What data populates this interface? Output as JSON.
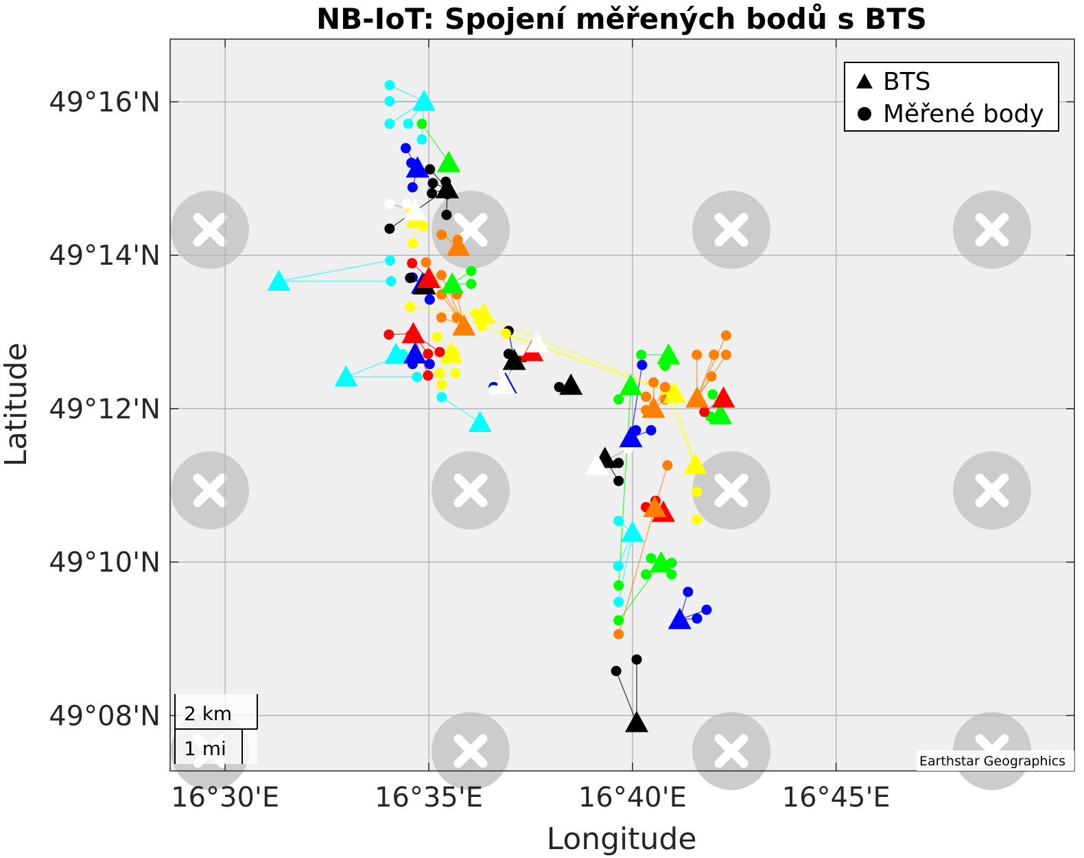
{
  "chart_data": {
    "type": "scatter",
    "title": "NB-IoT: Spojení měřených bodů s BTS",
    "xlabel": "Longitude",
    "ylabel": "Latitude",
    "xlim": [
      16.4775,
      16.8475
    ],
    "ylim": [
      49.1213,
      49.2803
    ],
    "x_ticks": [
      {
        "value": 16.5,
        "label": "16°30'E"
      },
      {
        "value": 16.58333,
        "label": "16°35'E"
      },
      {
        "value": 16.66667,
        "label": "16°40'E"
      },
      {
        "value": 16.75,
        "label": "16°45'E"
      }
    ],
    "y_ticks": [
      {
        "value": 49.13333,
        "label": "49°08'N"
      },
      {
        "value": 49.16667,
        "label": "49°10'N"
      },
      {
        "value": 49.2,
        "label": "49°12'N"
      },
      {
        "value": 49.23333,
        "label": "49°14'N"
      },
      {
        "value": 49.26667,
        "label": "49°16'N"
      }
    ],
    "grid": true,
    "legend": {
      "position": "top-right",
      "entries": [
        {
          "label": "BTS",
          "marker": "triangle",
          "color": "#000000"
        },
        {
          "label": "Měřené body",
          "marker": "circle",
          "color": "#000000"
        }
      ]
    },
    "scale_bar": {
      "km_label": "2 km",
      "mi_label": "1 mi"
    },
    "basemap_attribution": "Earthstar Geographics",
    "series": [
      {
        "color": "#00ffff",
        "bts": [
          [
            16.5814,
            49.2668
          ],
          [
            16.522,
            49.2277
          ],
          [
            16.5495,
            49.2069
          ],
          [
            16.5699,
            49.2118
          ],
          [
            16.6043,
            49.197
          ],
          [
            16.6667,
            49.1731
          ]
        ],
        "points": [
          [
            16.5673,
            49.2703,
            0
          ],
          [
            16.5673,
            49.2668,
            0
          ],
          [
            16.5673,
            49.2619,
            0
          ],
          [
            16.5749,
            49.2619,
            0
          ],
          [
            16.5805,
            49.2585,
            0
          ],
          [
            16.5675,
            49.2322,
            1
          ],
          [
            16.5679,
            49.2277,
            1
          ],
          [
            16.5727,
            49.2118,
            2
          ],
          [
            16.5785,
            49.2069,
            2
          ],
          [
            16.5886,
            49.2025,
            4
          ],
          [
            16.661,
            49.1756,
            5
          ],
          [
            16.6609,
            49.1658,
            5
          ],
          [
            16.661,
            49.158,
            5
          ]
        ]
      },
      {
        "color": "#00ff00",
        "bts": [
          [
            16.5915,
            49.2535
          ],
          [
            16.5929,
            49.2271
          ],
          [
            16.666,
            49.205
          ],
          [
            16.6814,
            49.2117
          ],
          [
            16.7027,
            49.1987
          ],
          [
            16.6784,
            49.1665
          ]
        ],
        "points": [
          [
            16.5805,
            49.2619,
            0
          ],
          [
            16.6007,
            49.2299,
            1
          ],
          [
            16.6007,
            49.2271,
            1
          ],
          [
            16.661,
            49.202,
            2
          ],
          [
            16.6703,
            49.2117,
            3
          ],
          [
            16.68,
            49.2093,
            3
          ],
          [
            16.6985,
            49.1983,
            4
          ],
          [
            16.6995,
            49.2031,
            4
          ],
          [
            16.6743,
            49.1675,
            5
          ],
          [
            16.6827,
            49.1665,
            5
          ],
          [
            16.6722,
            49.164,
            5
          ],
          [
            16.6827,
            49.164,
            5
          ],
          [
            16.661,
            49.1616,
            2
          ],
          [
            16.661,
            49.154,
            5
          ]
        ]
      },
      {
        "color": "#0000ff",
        "bts": [
          [
            16.5787,
            49.2523
          ],
          [
            16.5808,
            49.2271
          ],
          [
            16.5777,
            49.2119
          ],
          [
            16.6147,
            49.2054
          ],
          [
            16.666,
            49.1937
          ],
          [
            16.686,
            49.1542
          ]
        ],
        "points": [
          [
            16.5739,
            49.2566,
            0
          ],
          [
            16.5762,
            49.2534,
            0
          ],
          [
            16.5767,
            49.2481,
            0
          ],
          [
            16.5767,
            49.2285,
            1
          ],
          [
            16.5837,
            49.2237,
            1
          ],
          [
            16.5767,
            49.2097,
            2
          ],
          [
            16.5837,
            49.2097,
            2
          ],
          [
            16.6099,
            49.2047,
            3
          ],
          [
            16.6706,
            49.2095,
            4
          ],
          [
            16.6681,
            49.1953,
            4
          ],
          [
            16.6743,
            49.1953,
            4
          ],
          [
            16.6894,
            49.1602,
            5
          ],
          [
            16.697,
            49.1563,
            5
          ],
          [
            16.6931,
            49.1544,
            5
          ]
        ]
      },
      {
        "color": "#000000",
        "bts": [
          [
            16.5909,
            49.2478
          ],
          [
            16.5815,
            49.2269
          ],
          [
            16.6183,
            49.2105
          ],
          [
            16.6415,
            49.2051
          ],
          [
            16.6554,
            49.1892
          ],
          [
            16.6684,
            49.1318
          ]
        ],
        "points": [
          [
            16.5838,
            49.252,
            0
          ],
          [
            16.5903,
            49.2493,
            0
          ],
          [
            16.585,
            49.249,
            0
          ],
          [
            16.5846,
            49.2468,
            0
          ],
          [
            16.5909,
            49.2466,
            0
          ],
          [
            16.5906,
            49.2421,
            0
          ],
          [
            16.5673,
            49.2391,
            0
          ],
          [
            16.5757,
            49.2284,
            1
          ],
          [
            16.616,
            49.2169,
            2
          ],
          [
            16.616,
            49.2119,
            2
          ],
          [
            16.6223,
            49.2112,
            2
          ],
          [
            16.6367,
            49.2047,
            3
          ],
          [
            16.661,
            49.1882,
            4
          ],
          [
            16.661,
            49.1843,
            4
          ],
          [
            16.6684,
            49.1455,
            5
          ],
          [
            16.66,
            49.143,
            5
          ]
        ]
      },
      {
        "color": "#ff0000",
        "bts": [
          [
            16.5833,
            49.2283
          ],
          [
            16.577,
            49.2163
          ],
          [
            16.6255,
            49.2124
          ],
          [
            16.7039,
            49.2023
          ],
          [
            16.6793,
            49.1775
          ]
        ],
        "points": [
          [
            16.5765,
            49.2316,
            0
          ],
          [
            16.5837,
            49.227,
            0
          ],
          [
            16.567,
            49.2161,
            1
          ],
          [
            16.576,
            49.216,
            1
          ],
          [
            16.583,
            49.2119,
            1
          ],
          [
            16.583,
            49.2072,
            1
          ],
          [
            16.5878,
            49.2123,
            1
          ],
          [
            16.6223,
            49.2119,
            2
          ],
          [
            16.6961,
            49.1993,
            3
          ],
          [
            16.6722,
            49.1786,
            4
          ],
          [
            16.6761,
            49.18,
            4
          ]
        ]
      },
      {
        "color": "#ffff00",
        "bts": [
          [
            16.5785,
            49.2414
          ],
          [
            16.6059,
            49.2205
          ],
          [
            16.5926,
            49.212
          ],
          [
            16.6839,
            49.2033
          ],
          [
            16.6924,
            49.1879
          ]
        ],
        "points": [
          [
            16.5756,
            49.2437,
            0
          ],
          [
            16.581,
            49.2396,
            0
          ],
          [
            16.5768,
            49.2359,
            0
          ],
          [
            16.5757,
            49.2221,
            1
          ],
          [
            16.5868,
            49.2156,
            2
          ],
          [
            16.5937,
            49.2123,
            2
          ],
          [
            16.5876,
            49.2077,
            2
          ],
          [
            16.5886,
            49.2052,
            2
          ],
          [
            16.5942,
            49.2077,
            2
          ],
          [
            16.6025,
            49.2207,
            3
          ],
          [
            16.6051,
            49.2179,
            3
          ],
          [
            16.6149,
            49.2163,
            3
          ],
          [
            16.6802,
            49.2036,
            4
          ],
          [
            16.6822,
            49.204,
            4
          ],
          [
            16.693,
            49.1819,
            5
          ],
          [
            16.693,
            49.1759,
            5
          ]
        ]
      },
      {
        "color": "#ff8000",
        "bts": [
          [
            16.5954,
            49.2353
          ],
          [
            16.5977,
            49.218
          ],
          [
            16.6753,
            49.2001
          ],
          [
            16.6931,
            49.2023
          ],
          [
            16.6758,
            49.1785
          ]
        ],
        "points": [
          [
            16.5886,
            49.2378,
            0
          ],
          [
            16.5952,
            49.2367,
            0
          ],
          [
            16.596,
            49.2343,
            0
          ],
          [
            16.5822,
            49.2318,
            1
          ],
          [
            16.5885,
            49.229,
            1
          ],
          [
            16.5885,
            49.2248,
            1
          ],
          [
            16.5948,
            49.2248,
            1
          ],
          [
            16.5885,
            49.2198,
            1
          ],
          [
            16.5948,
            49.2198,
            1
          ],
          [
            16.6722,
            49.2026,
            2
          ],
          [
            16.6753,
            49.2057,
            2
          ],
          [
            16.68,
            49.2047,
            2
          ],
          [
            16.68,
            49.202,
            2
          ],
          [
            16.6722,
            49.1997,
            2
          ],
          [
            16.693,
            49.2117,
            3
          ],
          [
            16.7,
            49.2117,
            3
          ],
          [
            16.705,
            49.2117,
            3
          ],
          [
            16.705,
            49.2159,
            3
          ],
          [
            16.699,
            49.207,
            3
          ],
          [
            16.681,
            49.1877,
            4
          ],
          [
            16.661,
            49.151,
            4
          ]
        ]
      },
      {
        "color": "#ffffff",
        "bts": [
          [
            16.5777,
            49.243
          ],
          [
            16.6141,
            49.2053
          ],
          [
            16.6277,
            49.2143
          ],
          [
            16.6522,
            49.1877
          ]
        ],
        "points": [
          [
            16.5673,
            49.2445,
            0
          ],
          [
            16.5743,
            49.2445,
            0
          ],
          [
            16.6213,
            49.2126,
            1
          ],
          [
            16.6142,
            49.2081,
            1
          ],
          [
            16.6098,
            49.204,
            1
          ],
          [
            16.6649,
            49.1913,
            3
          ]
        ]
      }
    ]
  }
}
